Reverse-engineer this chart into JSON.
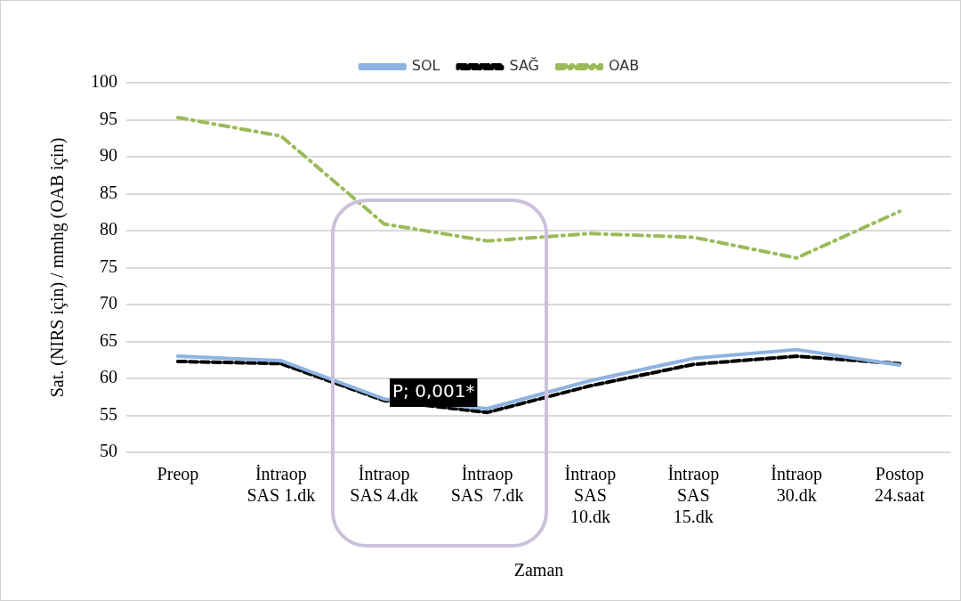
{
  "chart_data": {
    "type": "line",
    "xlabel": "Zaman",
    "ylabel": "Sat. (NIRS için) / mmhg (OAB için)",
    "categories": [
      "Preop",
      "İntraop\nSAS 1.dk",
      "İntraop\nSAS 4.dk",
      "İntraop\nSAS  7.dk",
      "İntraop\nSAS\n10.dk",
      "İntraop\nSAS\n15.dk",
      "İntraop\n30.dk",
      "Postop\n24.saat"
    ],
    "series": [
      {
        "name": "SOL",
        "color": "#8db3e2",
        "line_style": "solid",
        "values": [
          63.0,
          62.4,
          57.2,
          55.9,
          59.7,
          62.7,
          63.9,
          61.8
        ]
      },
      {
        "name": "SAĞ",
        "color": "#000000",
        "line_style": "dashed",
        "values": [
          62.3,
          62.0,
          57.0,
          55.4,
          59.0,
          61.9,
          63.0,
          62.0
        ]
      },
      {
        "name": "OAB",
        "color": "#9bbb59",
        "line_style": "dashdot",
        "values": [
          95.3,
          92.8,
          80.9,
          78.6,
          79.6,
          79.1,
          76.3,
          82.6
        ]
      }
    ],
    "ylim": [
      50,
      100
    ],
    "yticks": [
      50,
      55,
      60,
      65,
      70,
      75,
      80,
      85,
      90,
      95,
      100
    ],
    "grid": "y",
    "legend": "top",
    "marker": "none",
    "annotations": [
      "P; 0,001*"
    ]
  }
}
